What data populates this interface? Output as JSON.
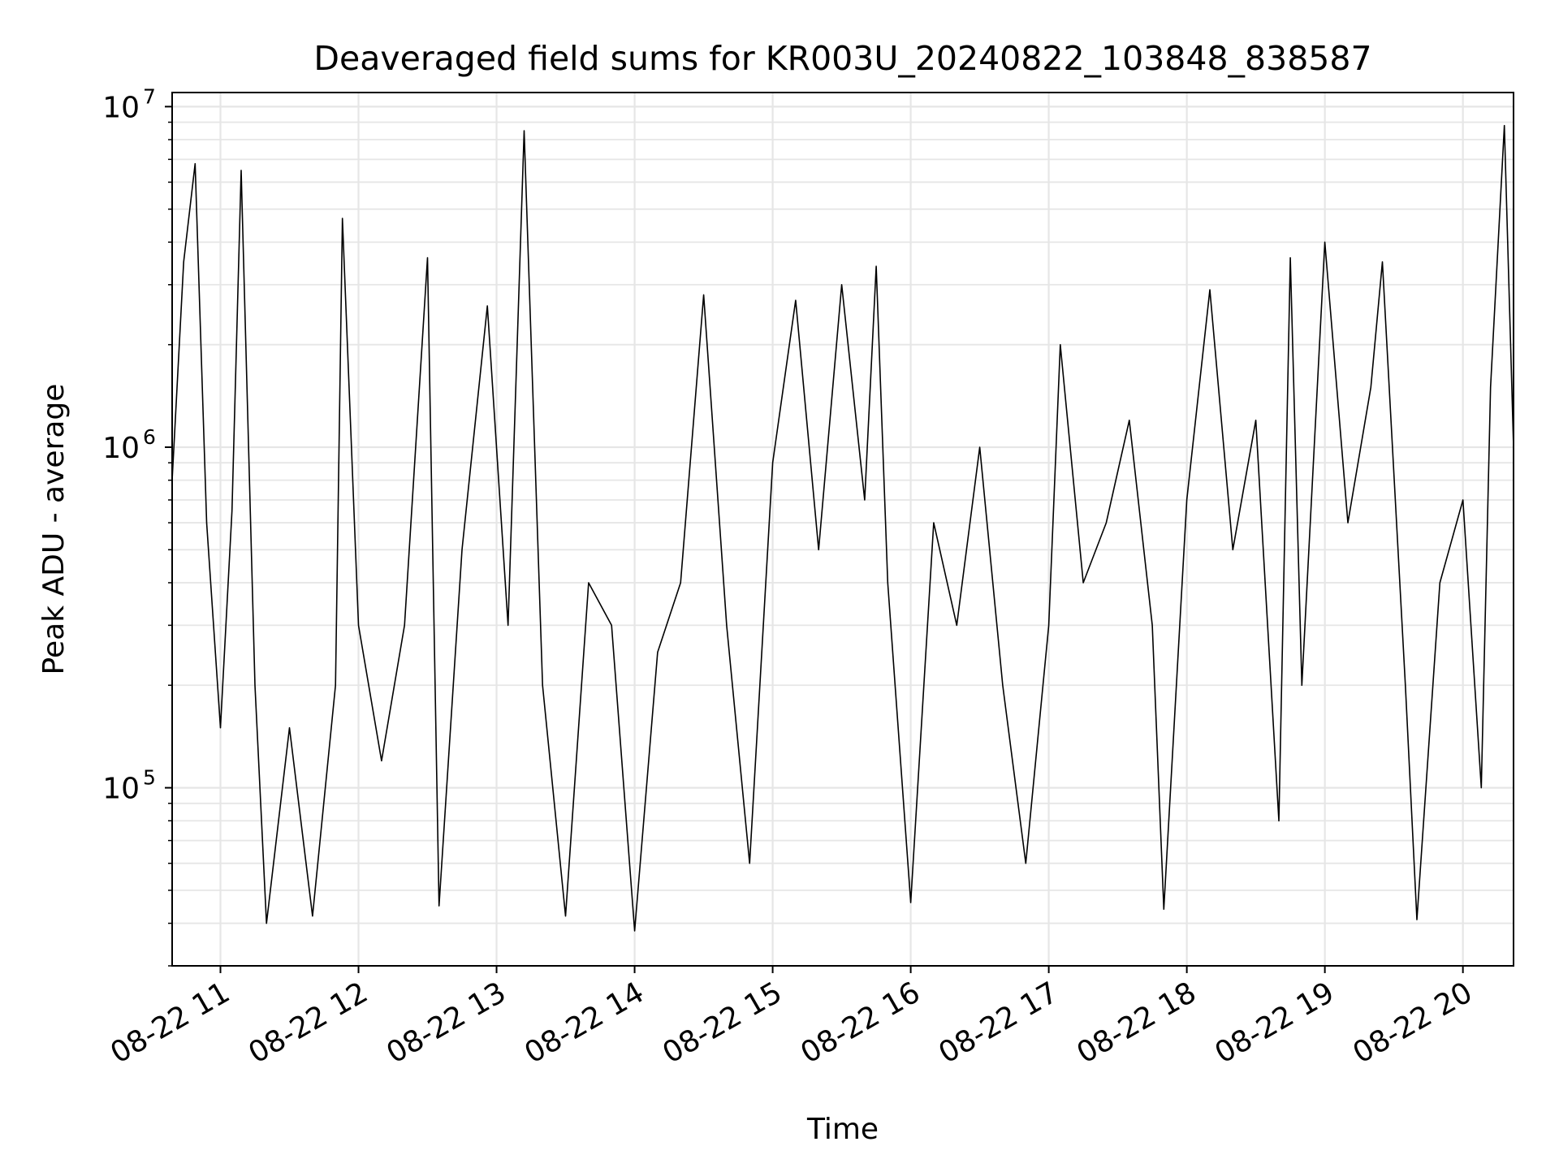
{
  "chart_data": {
    "type": "line",
    "title": "Deaveraged field sums for KR003U_20240822_103848_838587",
    "xlabel": "Time",
    "ylabel": "Peak ADU - average",
    "yscale": "log",
    "grid": true,
    "x_range": [
      "2024-08-22 10:39",
      "2024-08-22 20:22"
    ],
    "ylim": [
      30000,
      11000000
    ],
    "x_ticks": [
      {
        "value": "2024-08-22 11:00",
        "label": "08-22 11"
      },
      {
        "value": "2024-08-22 12:00",
        "label": "08-22 12"
      },
      {
        "value": "2024-08-22 13:00",
        "label": "08-22 13"
      },
      {
        "value": "2024-08-22 14:00",
        "label": "08-22 14"
      },
      {
        "value": "2024-08-22 15:00",
        "label": "08-22 15"
      },
      {
        "value": "2024-08-22 16:00",
        "label": "08-22 16"
      },
      {
        "value": "2024-08-22 17:00",
        "label": "08-22 17"
      },
      {
        "value": "2024-08-22 18:00",
        "label": "08-22 18"
      },
      {
        "value": "2024-08-22 19:00",
        "label": "08-22 19"
      },
      {
        "value": "2024-08-22 20:00",
        "label": "08-22 20"
      }
    ],
    "y_ticks": [
      {
        "value": 100000,
        "base": "10",
        "exp": "5"
      },
      {
        "value": 1000000,
        "base": "10",
        "exp": "6"
      },
      {
        "value": 10000000,
        "base": "10",
        "exp": "7"
      }
    ],
    "series": [
      {
        "color": "#000000",
        "points": [
          [
            "2024-08-22 10:39",
            800000
          ],
          [
            "2024-08-22 10:44",
            3500000
          ],
          [
            "2024-08-22 10:49",
            6800000
          ],
          [
            "2024-08-22 10:54",
            600000
          ],
          [
            "2024-08-22 11:00",
            150000
          ],
          [
            "2024-08-22 11:05",
            650000
          ],
          [
            "2024-08-22 11:09",
            6500000
          ],
          [
            "2024-08-22 11:15",
            200000
          ],
          [
            "2024-08-22 11:20",
            40000
          ],
          [
            "2024-08-22 11:30",
            150000
          ],
          [
            "2024-08-22 11:40",
            42000
          ],
          [
            "2024-08-22 11:50",
            200000
          ],
          [
            "2024-08-22 11:53",
            4700000
          ],
          [
            "2024-08-22 12:00",
            300000
          ],
          [
            "2024-08-22 12:10",
            120000
          ],
          [
            "2024-08-22 12:20",
            300000
          ],
          [
            "2024-08-22 12:30",
            3600000
          ],
          [
            "2024-08-22 12:35",
            45000
          ],
          [
            "2024-08-22 12:45",
            500000
          ],
          [
            "2024-08-22 12:56",
            2600000
          ],
          [
            "2024-08-22 13:05",
            300000
          ],
          [
            "2024-08-22 13:12",
            8500000
          ],
          [
            "2024-08-22 13:20",
            200000
          ],
          [
            "2024-08-22 13:30",
            42000
          ],
          [
            "2024-08-22 13:40",
            400000
          ],
          [
            "2024-08-22 13:50",
            300000
          ],
          [
            "2024-08-22 14:00",
            38000
          ],
          [
            "2024-08-22 14:10",
            250000
          ],
          [
            "2024-08-22 14:20",
            400000
          ],
          [
            "2024-08-22 14:30",
            2800000
          ],
          [
            "2024-08-22 14:40",
            300000
          ],
          [
            "2024-08-22 14:50",
            60000
          ],
          [
            "2024-08-22 15:00",
            900000
          ],
          [
            "2024-08-22 15:10",
            2700000
          ],
          [
            "2024-08-22 15:20",
            500000
          ],
          [
            "2024-08-22 15:30",
            3000000
          ],
          [
            "2024-08-22 15:40",
            700000
          ],
          [
            "2024-08-22 15:45",
            3400000
          ],
          [
            "2024-08-22 15:50",
            400000
          ],
          [
            "2024-08-22 16:00",
            46000
          ],
          [
            "2024-08-22 16:10",
            600000
          ],
          [
            "2024-08-22 16:20",
            300000
          ],
          [
            "2024-08-22 16:30",
            1000000
          ],
          [
            "2024-08-22 16:40",
            200000
          ],
          [
            "2024-08-22 16:50",
            60000
          ],
          [
            "2024-08-22 17:00",
            300000
          ],
          [
            "2024-08-22 17:05",
            2000000
          ],
          [
            "2024-08-22 17:15",
            400000
          ],
          [
            "2024-08-22 17:25",
            600000
          ],
          [
            "2024-08-22 17:35",
            1200000
          ],
          [
            "2024-08-22 17:45",
            300000
          ],
          [
            "2024-08-22 17:50",
            44000
          ],
          [
            "2024-08-22 18:00",
            700000
          ],
          [
            "2024-08-22 18:10",
            2900000
          ],
          [
            "2024-08-22 18:20",
            500000
          ],
          [
            "2024-08-22 18:30",
            1200000
          ],
          [
            "2024-08-22 18:40",
            80000
          ],
          [
            "2024-08-22 18:45",
            3600000
          ],
          [
            "2024-08-22 18:50",
            200000
          ],
          [
            "2024-08-22 19:00",
            4000000
          ],
          [
            "2024-08-22 19:10",
            600000
          ],
          [
            "2024-08-22 19:20",
            1500000
          ],
          [
            "2024-08-22 19:25",
            3500000
          ],
          [
            "2024-08-22 19:35",
            200000
          ],
          [
            "2024-08-22 19:40",
            41000
          ],
          [
            "2024-08-22 19:50",
            400000
          ],
          [
            "2024-08-22 20:00",
            700000
          ],
          [
            "2024-08-22 20:08",
            100000
          ],
          [
            "2024-08-22 20:12",
            1500000
          ],
          [
            "2024-08-22 20:18",
            8800000
          ],
          [
            "2024-08-22 20:22",
            1000000
          ]
        ]
      }
    ]
  }
}
